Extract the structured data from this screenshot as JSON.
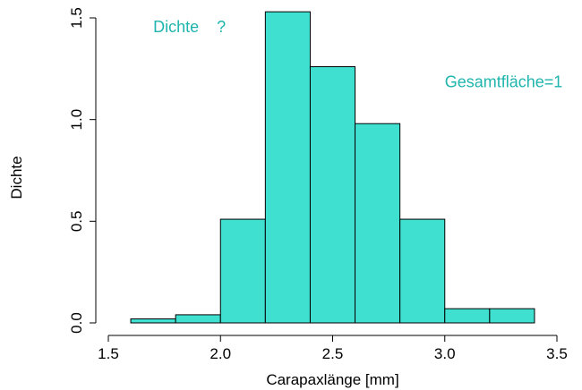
{
  "chart_data": {
    "type": "bar",
    "subtype": "histogram",
    "bins": [
      {
        "x0": 1.6,
        "x1": 1.8,
        "density": 0.02
      },
      {
        "x0": 1.8,
        "x1": 2.0,
        "density": 0.04
      },
      {
        "x0": 2.0,
        "x1": 2.2,
        "density": 0.51
      },
      {
        "x0": 2.2,
        "x1": 2.4,
        "density": 1.53
      },
      {
        "x0": 2.4,
        "x1": 2.6,
        "density": 1.26
      },
      {
        "x0": 2.6,
        "x1": 2.8,
        "density": 0.98
      },
      {
        "x0": 2.8,
        "x1": 3.0,
        "density": 0.51
      },
      {
        "x0": 3.0,
        "x1": 3.2,
        "density": 0.07
      },
      {
        "x0": 3.2,
        "x1": 3.4,
        "density": 0.07
      }
    ],
    "xlabel": "Carapaxlänge [mm]",
    "ylabel": "Dichte",
    "xlim": [
      1.5,
      3.5
    ],
    "ylim": [
      0,
      1.5
    ],
    "xticks": [
      "1.5",
      "2.0",
      "2.5",
      "3.0",
      "3.5"
    ],
    "yticks": [
      "0.0",
      "0.5",
      "1.0",
      "1.5"
    ],
    "bar_color": "#40e0d0",
    "annotations": [
      {
        "text": "Dichte    ?",
        "color": "#1fb5ad",
        "x": 1.7,
        "y": 1.43
      },
      {
        "text": "Gesamtfläche=1",
        "color": "#1fb5ad",
        "x": 3.0,
        "y": 1.16
      }
    ]
  }
}
